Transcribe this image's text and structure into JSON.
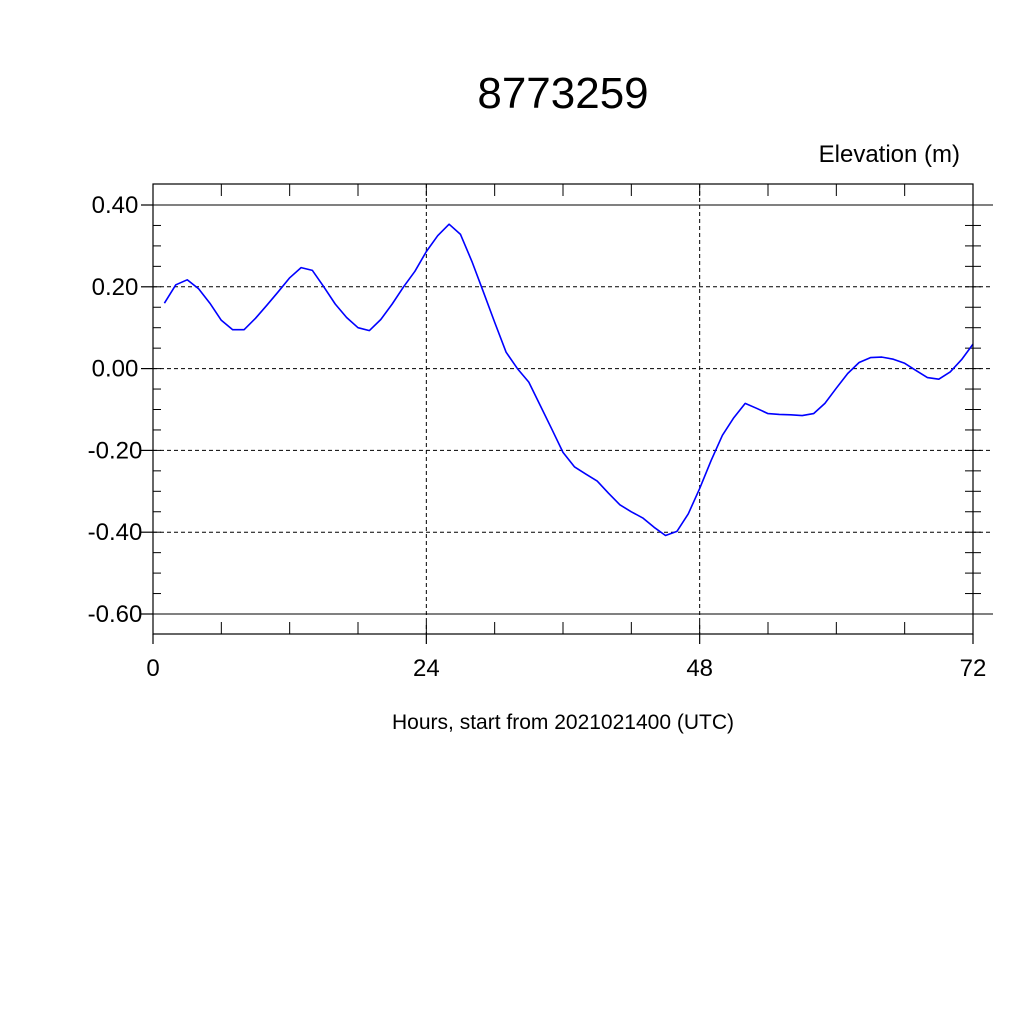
{
  "chart_data": {
    "type": "line",
    "title": "8773259",
    "ylabel": "Elevation (m)",
    "xlabel": "Hours, start from 2021021400 (UTC)",
    "xlim": [
      0,
      72
    ],
    "ylim": [
      -0.6,
      0.4
    ],
    "grid": true,
    "x_ticks": [
      0,
      24,
      48,
      72
    ],
    "x_tick_labels": [
      "0",
      "24",
      "48",
      "72"
    ],
    "y_ticks": [
      -0.6,
      -0.4,
      -0.2,
      0.0,
      0.2,
      0.4
    ],
    "y_tick_labels": [
      "-0.60",
      "-0.40",
      "-0.20",
      "0.00",
      "0.20",
      "0.40"
    ],
    "series": [
      {
        "color": "#0000ff",
        "x": [
          1,
          2,
          3,
          4,
          5,
          6,
          7,
          8,
          9,
          10,
          11,
          12,
          13,
          14,
          15,
          16,
          17,
          18,
          19,
          20,
          21,
          22,
          23,
          24,
          25,
          26,
          27,
          28,
          29,
          30,
          31,
          32,
          33,
          34,
          35,
          36,
          37,
          38,
          39,
          40,
          41,
          42,
          43,
          44,
          45,
          46,
          47,
          48,
          49,
          50,
          51,
          52,
          53,
          54,
          55,
          56,
          57,
          58,
          59,
          60,
          61,
          62,
          63,
          64,
          65,
          66,
          67,
          68,
          69,
          70,
          71,
          72
        ],
        "y": [
          0.16,
          0.205,
          0.217,
          0.195,
          0.16,
          0.118,
          0.095,
          0.095,
          0.123,
          0.155,
          0.188,
          0.222,
          0.247,
          0.24,
          0.2,
          0.158,
          0.125,
          0.1,
          0.093,
          0.12,
          0.158,
          0.2,
          0.238,
          0.286,
          0.325,
          0.353,
          0.328,
          0.262,
          0.188,
          0.113,
          0.04,
          0.0,
          -0.033,
          -0.09,
          -0.147,
          -0.205,
          -0.24,
          -0.258,
          -0.275,
          -0.305,
          -0.333,
          -0.35,
          -0.365,
          -0.388,
          -0.408,
          -0.398,
          -0.355,
          -0.293,
          -0.225,
          -0.163,
          -0.12,
          -0.085,
          -0.097,
          -0.11,
          -0.112,
          -0.113,
          -0.115,
          -0.11,
          -0.085,
          -0.048,
          -0.012,
          0.015,
          0.027,
          0.028,
          0.023,
          0.013,
          -0.005,
          -0.022,
          -0.026,
          -0.008,
          0.022,
          0.06
        ]
      }
    ]
  }
}
